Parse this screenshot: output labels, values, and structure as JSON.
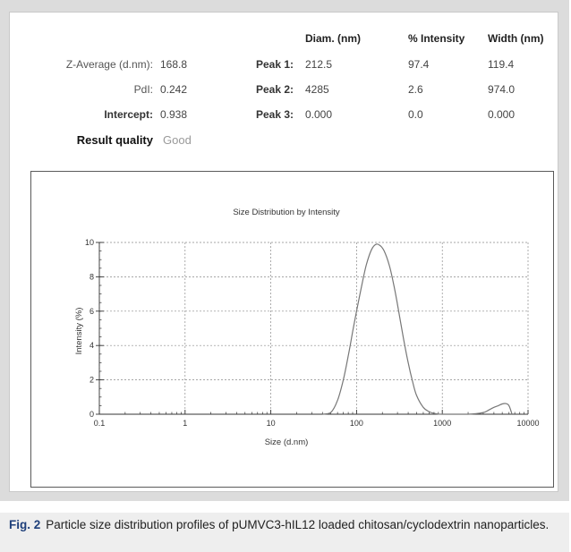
{
  "results": {
    "z_average_label": "Z-Average (d.nm):",
    "z_average_value": "168.8",
    "pdi_label": "PdI:",
    "pdi_value": "0.242",
    "intercept_label": "Intercept:",
    "intercept_value": "0.938",
    "quality_label": "Result quality",
    "quality_value": "Good"
  },
  "peaks": {
    "headers": [
      "Diam. (nm)",
      "% Intensity",
      "Width (nm)"
    ],
    "rows": [
      {
        "label": "Peak 1:",
        "diam": "212.5",
        "intensity": "97.4",
        "width": "119.4"
      },
      {
        "label": "Peak 2:",
        "diam": "4285",
        "intensity": "2.6",
        "width": "974.0"
      },
      {
        "label": "Peak 3:",
        "diam": "0.000",
        "intensity": "0.0",
        "width": "0.000"
      }
    ]
  },
  "chart_data": {
    "type": "line",
    "title": "Size Distribution by Intensity",
    "xlabel": "Size (d.nm)",
    "ylabel": "Intensity (%)",
    "xscale": "log",
    "xlim": [
      0.1,
      10000
    ],
    "ylim": [
      0,
      10
    ],
    "x_ticks": [
      "0.1",
      "1",
      "10",
      "100",
      "1000",
      "10000"
    ],
    "y_ticks": [
      "0",
      "2",
      "4",
      "6",
      "8",
      "10"
    ],
    "grid": true,
    "legend": "none",
    "line_color": "#777777",
    "series": [
      {
        "x": [
          40,
          50,
          60,
          70,
          80,
          90,
          100,
          115,
          130,
          150,
          170,
          190,
          210,
          240,
          270,
          300,
          350,
          400,
          450,
          500,
          600,
          700,
          800,
          900,
          1000,
          2000,
          3000,
          3500,
          4000,
          4500,
          5000,
          5500,
          6000,
          6500
        ],
        "y": [
          0,
          0.1,
          0.8,
          2.0,
          3.4,
          4.8,
          6.0,
          7.5,
          8.7,
          9.6,
          9.9,
          9.8,
          9.5,
          8.7,
          7.6,
          6.4,
          4.5,
          3.0,
          1.9,
          1.1,
          0.4,
          0.15,
          0.05,
          0.01,
          0,
          0,
          0.1,
          0.25,
          0.4,
          0.5,
          0.6,
          0.62,
          0.5,
          0
        ]
      }
    ]
  },
  "caption": {
    "fig_label": "Fig. 2",
    "text": "Particle size distribution profiles of pUMVC3-hIL12 loaded chitosan/cyclodextrin nanoparticles."
  }
}
